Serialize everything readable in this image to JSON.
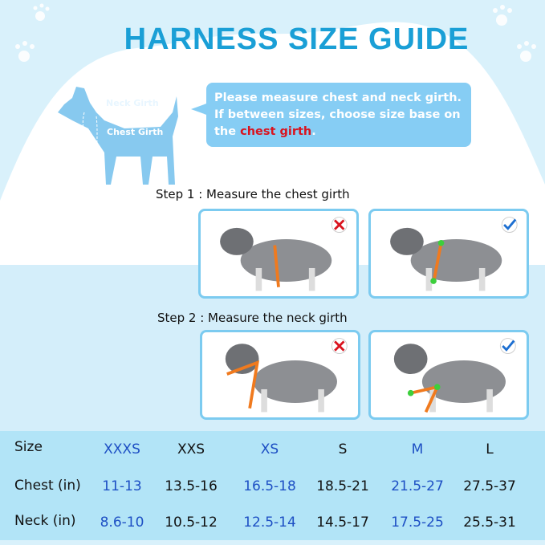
{
  "title": "HARNESS SIZE GUIDE",
  "diagram": {
    "neck_label": "Neck Girth",
    "chest_label": "Chest Girth"
  },
  "note": {
    "line1": "Please measure chest and neck girth.",
    "line2": "If between sizes, choose size base on",
    "line3_prefix": "the ",
    "line3_highlight": "chest girth",
    "line3_suffix": ".",
    "highlight_color": "#d9141f"
  },
  "steps": [
    {
      "label": "Step 1 : Measure the chest girth",
      "wrong_icon": "cross-icon",
      "right_icon": "check-icon"
    },
    {
      "label": "Step 2 : Measure the neck girth",
      "wrong_icon": "cross-icon",
      "right_icon": "check-icon"
    }
  ],
  "size_table": {
    "headers": [
      "Size",
      "XXXS",
      "XXS",
      "XS",
      "S",
      "M",
      "L"
    ],
    "rows": [
      {
        "label": "Chest (in)",
        "values": [
          "11-13",
          "13.5-16",
          "16.5-18",
          "18.5-21",
          "21.5-27",
          "27.5-37"
        ]
      },
      {
        "label": "Neck (in)",
        "values": [
          "8.6-10",
          "10.5-12",
          "12.5-14",
          "14.5-17",
          "17.5-25",
          "25.5-31"
        ]
      }
    ],
    "accent_color": "#1d4fc4"
  }
}
